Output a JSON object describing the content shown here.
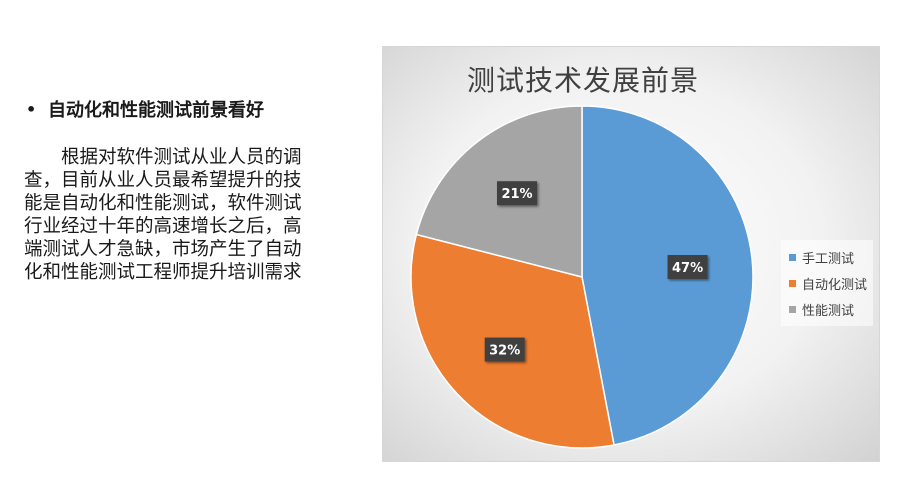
{
  "text": {
    "bullet": "•",
    "heading": "自动化和性能测试前景看好",
    "paragraph": "　　根据对软件测试从业人员的调\n查，目前从业人员最希望提升的技\n能是自动化和性能测试，软件测试\n行业经过十年的高速增长之后，高\n端测试人才急缺，市场产生了自动\n化和性能测试工程师提升培训需求"
  },
  "chart_data": {
    "type": "pie",
    "title": "测试技术发展前景",
    "categories": [
      "手工测试",
      "自动化测试",
      "性能测试"
    ],
    "values": [
      47,
      32,
      21
    ],
    "labels": [
      "47%",
      "32%",
      "21%"
    ],
    "colors": [
      "#5b9bd5",
      "#ed7d31",
      "#a5a5a5"
    ],
    "start_angle_deg": 0,
    "direction": "clockwise",
    "legend_position": "right"
  }
}
